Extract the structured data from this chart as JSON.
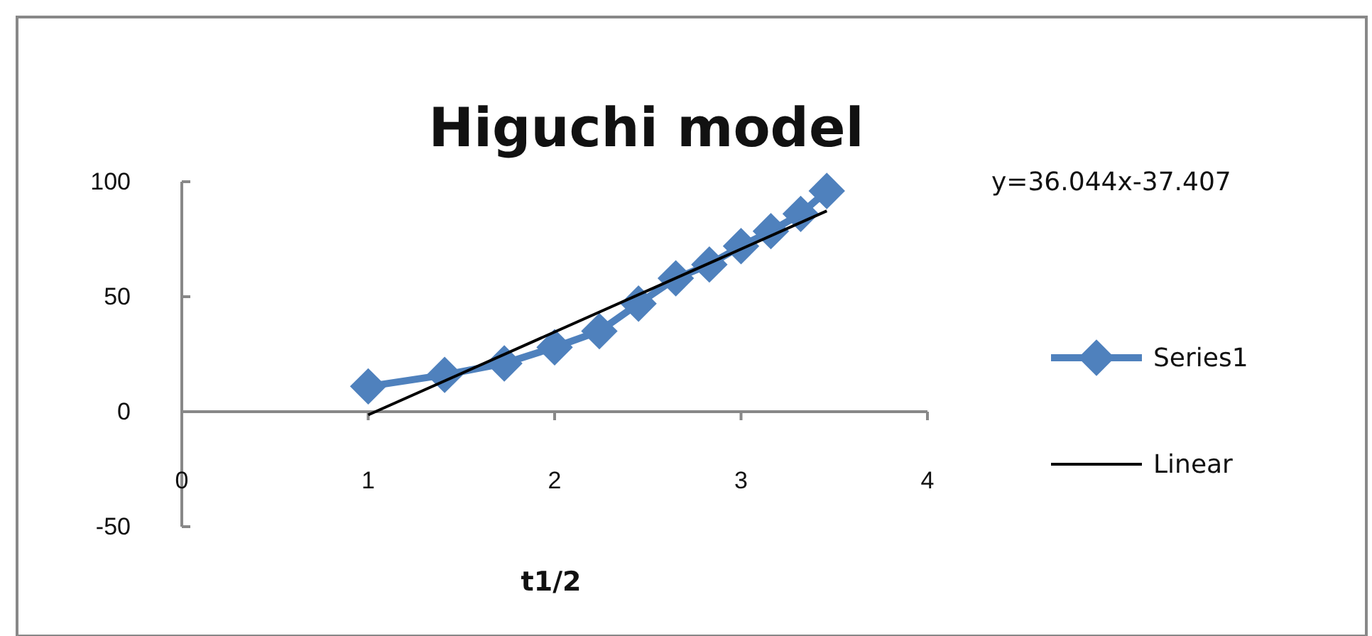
{
  "chart_data": {
    "type": "line",
    "title": "Higuchi model",
    "xlabel": "t1/2",
    "annotations": [
      "y=36.044x-37.407"
    ],
    "series": [
      {
        "name": "Series1",
        "color": "#4f81bd",
        "marker": "diamond",
        "x": [
          1,
          1.41,
          1.73,
          2,
          2.24,
          2.45,
          2.65,
          2.83,
          3,
          3.16,
          3.32,
          3.46
        ],
        "values": [
          11,
          16,
          21,
          28,
          35,
          47,
          58,
          64,
          72,
          78.5,
          86,
          96
        ]
      },
      {
        "name": "Linear",
        "color": "#000000",
        "marker": "none",
        "x": [
          1,
          3.46
        ],
        "values": [
          -1.4,
          87.3
        ]
      }
    ],
    "xlim": [
      0,
      4
    ],
    "xticks": [
      0,
      1,
      2,
      3,
      4
    ],
    "ylim": [
      -50,
      100
    ],
    "yticks": [
      -50,
      0,
      50,
      100
    ],
    "grid": false,
    "legend": "right"
  }
}
